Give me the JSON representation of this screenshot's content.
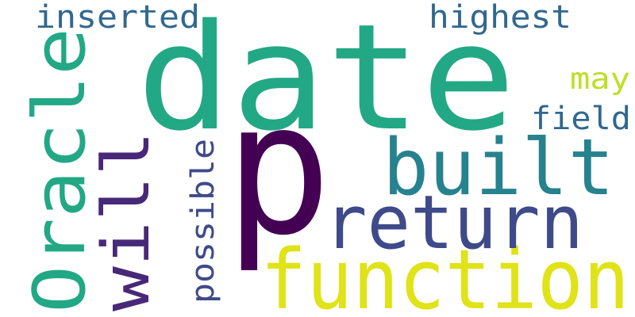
{
  "words": [
    {
      "text": "date",
      "color": "#22a884"
    },
    {
      "text": "p",
      "color": "#440154"
    },
    {
      "text": "function",
      "color": "#dfe318"
    },
    {
      "text": "return",
      "color": "#3e4a89"
    },
    {
      "text": "built",
      "color": "#26828e"
    },
    {
      "text": "Oracle",
      "color": "#22a884"
    },
    {
      "text": "will",
      "color": "#482878"
    },
    {
      "text": "possible",
      "color": "#3e4a89"
    },
    {
      "text": "inserted",
      "color": "#31688e"
    },
    {
      "text": "highest",
      "color": "#31688e"
    },
    {
      "text": "field",
      "color": "#31688e"
    },
    {
      "text": "may",
      "color": "#bddf26"
    }
  ]
}
